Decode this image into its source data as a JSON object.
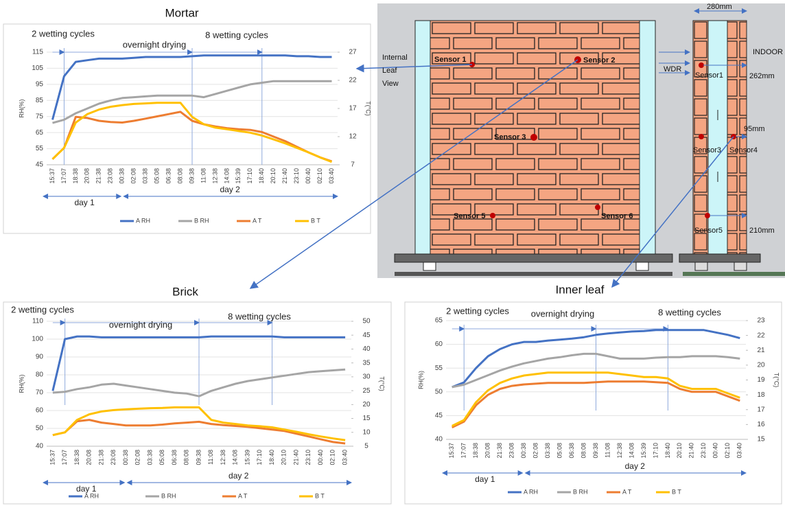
{
  "chart_data": [
    {
      "type": "line",
      "title": "Mortar",
      "ylabel": "RH(%)",
      "y2label": "T(°C)",
      "categories": [
        "15:37",
        "17:07",
        "18:38",
        "20:08",
        "21:38",
        "23:08",
        "00:38",
        "02:08",
        "03:38",
        "05:08",
        "06:38",
        "08:08",
        "09:38",
        "11:08",
        "12:38",
        "14:08",
        "15:39",
        "17:10",
        "18:40",
        "20:10",
        "21:40",
        "23:10",
        "00:40",
        "02:10",
        "03:40"
      ],
      "ylim": [
        45,
        115
      ],
      "yticks": [
        45,
        55,
        65,
        75,
        85,
        95,
        105,
        115
      ],
      "y2lim": [
        7,
        27
      ],
      "y2ticks": [
        7,
        12,
        17,
        22,
        27
      ],
      "grid": true,
      "annotations": [
        "2 wetting cycles",
        "overnight drying",
        "8 wetting cycles"
      ],
      "day_labels": [
        "day 1",
        "day 2"
      ],
      "series": [
        {
          "name": "A RH",
          "color": "#4472c4",
          "values": [
            73,
            100,
            109,
            110,
            111,
            111,
            111,
            111.5,
            112,
            112,
            112,
            112,
            112.5,
            113,
            113,
            113,
            113,
            113,
            113,
            113,
            113,
            112.5,
            112.5,
            112,
            112
          ]
        },
        {
          "name": "B RH",
          "color": "#a5a5a5",
          "values": [
            71,
            73,
            77,
            80,
            83,
            85,
            86.5,
            87,
            87.5,
            88,
            88,
            88,
            88,
            87,
            89,
            91,
            93,
            95,
            96,
            97,
            97,
            97,
            97,
            97,
            97
          ]
        },
        {
          "name": "A T",
          "color": "#ed7d31",
          "axis": "y2",
          "values": [
            8,
            10,
            15.5,
            15.3,
            14.8,
            14.6,
            14.5,
            14.8,
            15.2,
            15.6,
            16,
            16.4,
            14.8,
            14.2,
            13.8,
            13.5,
            13.3,
            13.2,
            12.8,
            12,
            11.2,
            10.2,
            9.2,
            8.3,
            7.6
          ]
        },
        {
          "name": "B T",
          "color": "#ffc000",
          "axis": "y2",
          "values": [
            8,
            10,
            14.5,
            16,
            16.8,
            17.3,
            17.6,
            17.8,
            17.9,
            18,
            18,
            18,
            15.5,
            14.2,
            13.6,
            13.3,
            13,
            12.7,
            12.2,
            11.5,
            10.8,
            10,
            9.2,
            8.3,
            7.5
          ]
        }
      ]
    },
    {
      "type": "line",
      "title": "Brick",
      "ylabel": "RH(%)",
      "y2label": "T(°C)",
      "categories": [
        "15:37",
        "17:07",
        "18:38",
        "20:08",
        "21:38",
        "23:08",
        "00:38",
        "02:08",
        "03:38",
        "05:08",
        "06:38",
        "08:08",
        "09:38",
        "11:08",
        "12:38",
        "14:08",
        "15:39",
        "17:10",
        "18:40",
        "20:10",
        "21:40",
        "23:10",
        "00:40",
        "02:10",
        "03:40"
      ],
      "ylim": [
        40,
        110
      ],
      "yticks": [
        40,
        50,
        60,
        70,
        80,
        90,
        100,
        110
      ],
      "y2lim": [
        5,
        50
      ],
      "y2ticks": [
        5,
        10,
        15,
        20,
        25,
        30,
        35,
        40,
        45,
        50
      ],
      "grid": true,
      "annotations": [
        "2 wetting cycles",
        "overnight drying",
        "8 wetting cycles"
      ],
      "day_labels": [
        "day 1",
        "day 2"
      ],
      "series": [
        {
          "name": "A RH",
          "color": "#4472c4",
          "values": [
            71,
            100,
            101.5,
            101.5,
            101,
            101,
            101,
            101,
            101,
            101,
            101,
            101,
            101,
            101.5,
            101.5,
            101.5,
            101.5,
            101.5,
            101.5,
            101,
            101,
            101,
            101,
            101,
            101
          ]
        },
        {
          "name": "B RH",
          "color": "#a5a5a5",
          "values": [
            70,
            70.5,
            72,
            73,
            74.5,
            75,
            74,
            73,
            72,
            71,
            70,
            69.5,
            68,
            71,
            73,
            75,
            76.5,
            77.5,
            78.5,
            79.5,
            80.5,
            81.5,
            82,
            82.5,
            83
          ]
        },
        {
          "name": "A T",
          "color": "#ed7d31",
          "axis": "y2",
          "values": [
            9,
            10,
            14,
            14.5,
            13.5,
            13,
            12.5,
            12.5,
            12.5,
            12.8,
            13.2,
            13.5,
            13.8,
            13,
            12.6,
            12.3,
            12,
            11.5,
            11,
            10.5,
            9.5,
            8.5,
            7.5,
            6.5,
            6
          ]
        },
        {
          "name": "B T",
          "color": "#ffc000",
          "axis": "y2",
          "values": [
            9,
            10,
            14.5,
            16.5,
            17.5,
            18,
            18.3,
            18.5,
            18.7,
            18.8,
            19,
            19,
            19,
            14.5,
            13.5,
            13,
            12.5,
            12.2,
            11.8,
            11,
            10.2,
            9.3,
            8.5,
            7.8,
            7.2
          ]
        }
      ]
    },
    {
      "type": "line",
      "title": "Inner leaf",
      "ylabel": "RH(%)",
      "y2label": "T(°C)",
      "categories": [
        "15:37",
        "17:07",
        "18:38",
        "20:08",
        "21:38",
        "23:08",
        "00:38",
        "02:08",
        "03:38",
        "05:08",
        "06:38",
        "08:08",
        "09:38",
        "11:08",
        "12:38",
        "14:08",
        "15:39",
        "17:10",
        "18:40",
        "20:10",
        "21:40",
        "23:10",
        "00:40",
        "02:10",
        "03:40"
      ],
      "ylim": [
        40,
        65
      ],
      "yticks": [
        40,
        45,
        50,
        55,
        60,
        65
      ],
      "y2lim": [
        15,
        23
      ],
      "y2ticks": [
        15,
        16,
        17,
        18,
        19,
        20,
        21,
        22,
        23
      ],
      "grid": true,
      "annotations": [
        "2 wetting cycles",
        "overnight drying",
        "8 wetting cycles"
      ],
      "day_labels": [
        "day 1",
        "day 2"
      ],
      "series": [
        {
          "name": "A RH",
          "color": "#4472c4",
          "values": [
            51,
            52,
            55,
            57.5,
            59,
            60,
            60.5,
            60.5,
            60.8,
            61,
            61.2,
            61.5,
            62,
            62.3,
            62.5,
            62.7,
            62.8,
            63,
            63,
            63,
            63,
            63,
            62.5,
            62,
            61.3
          ]
        },
        {
          "name": "B RH",
          "color": "#a5a5a5",
          "values": [
            51,
            51.5,
            52.5,
            53.5,
            54.5,
            55.3,
            56,
            56.5,
            57,
            57.3,
            57.7,
            58,
            58,
            57.5,
            57,
            57,
            57,
            57.2,
            57.3,
            57.3,
            57.5,
            57.5,
            57.5,
            57.3,
            57
          ]
        },
        {
          "name": "A T",
          "color": "#ed7d31",
          "axis": "y2",
          "values": [
            15.8,
            16.2,
            17.3,
            18,
            18.4,
            18.6,
            18.7,
            18.75,
            18.8,
            18.8,
            18.8,
            18.8,
            18.85,
            18.9,
            18.9,
            18.9,
            18.9,
            18.85,
            18.8,
            18.4,
            18.2,
            18.2,
            18.2,
            17.9,
            17.6
          ]
        },
        {
          "name": "B T",
          "color": "#ffc000",
          "axis": "y2",
          "values": [
            15.9,
            16.3,
            17.5,
            18.3,
            18.8,
            19.1,
            19.3,
            19.4,
            19.5,
            19.5,
            19.5,
            19.5,
            19.5,
            19.5,
            19.4,
            19.3,
            19.2,
            19.2,
            19.1,
            18.6,
            18.4,
            18.4,
            18.4,
            18.1,
            17.8
          ]
        }
      ]
    }
  ],
  "diagram": {
    "internal_label": [
      "Internal",
      "Leaf",
      "View"
    ],
    "wall_sensors": [
      "Sensor 1",
      "Sensor 2",
      "Sensor 3",
      "Sensor 5",
      "Sensor 6"
    ],
    "section_labels": [
      "280mm",
      "INDOOR",
      "WDR",
      "Sensor1",
      "262mm",
      "95mm",
      "Sensor3",
      "Sensor4",
      "210mm",
      "Sensor5"
    ]
  }
}
